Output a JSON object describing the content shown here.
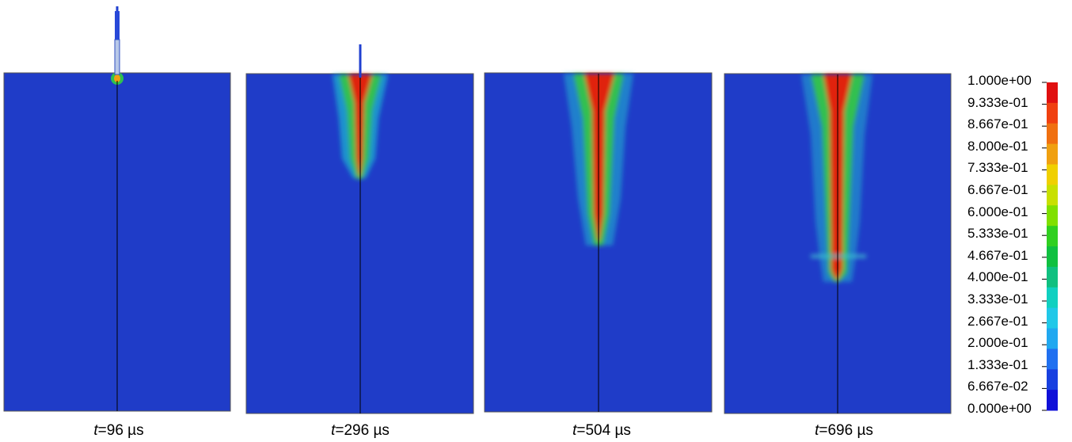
{
  "panels": [
    {
      "time_label": "t",
      "eq": "=96 ",
      "unit": "µs",
      "crack_depth_fraction": 0.0
    },
    {
      "time_label": "t",
      "eq": "=296 ",
      "unit": "µs",
      "crack_depth_fraction": 0.31
    },
    {
      "time_label": "t",
      "eq": "=504 ",
      "unit": "µs",
      "crack_depth_fraction": 0.5
    },
    {
      "time_label": "t",
      "eq": "=696 ",
      "unit": "µs",
      "crack_depth_fraction": 0.6
    }
  ],
  "colorbar": {
    "labels": [
      "1.000e+00",
      "9.333e-01",
      "8.667e-01",
      "8.000e-01",
      "7.333e-01",
      "6.667e-01",
      "6.000e-01",
      "5.333e-01",
      "4.667e-01",
      "4.000e-01",
      "3.333e-01",
      "2.667e-01",
      "2.000e-01",
      "1.333e-01",
      "6.667e-02",
      "0.000e+00"
    ],
    "colors": [
      "#e01010",
      "#f04010",
      "#f07010",
      "#f0a010",
      "#f0d000",
      "#c8e000",
      "#80e000",
      "#30d020",
      "#10c040",
      "#10c080",
      "#10d0c0",
      "#20c8e8",
      "#20a8f0",
      "#2070f0",
      "#1840e0",
      "#1010d8"
    ]
  },
  "colors": {
    "background_field": "#1f3cc8",
    "crack_line": "#000000"
  }
}
